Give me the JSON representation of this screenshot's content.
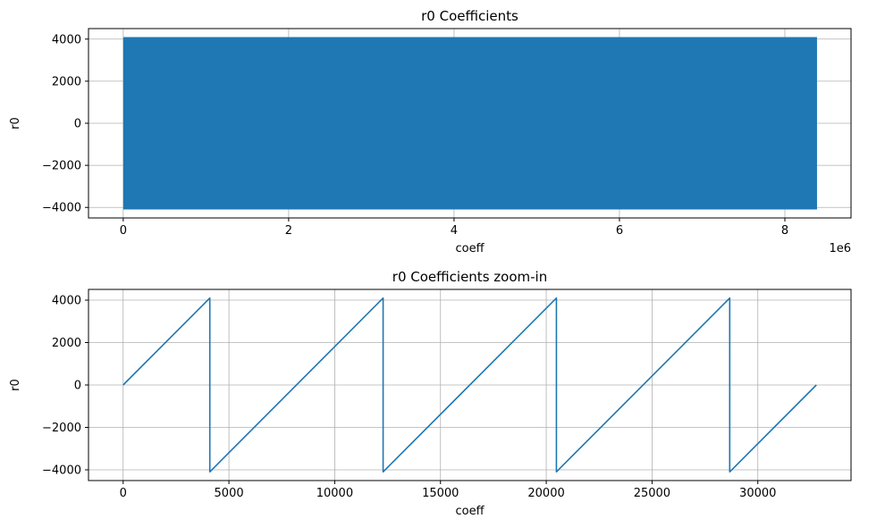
{
  "figure": {
    "background": "#ffffff",
    "line_color": "#1f77b4",
    "grid_color": "#b0b0b0"
  },
  "chart_data": [
    {
      "type": "line",
      "title": "r0 Coefficients",
      "xlabel": "coeff",
      "ylabel": "r0",
      "x_offset_label": "1e6",
      "xlim": [
        -0.42,
        8.8
      ],
      "ylim": [
        -4500,
        4500
      ],
      "x_ticks": [
        0,
        2,
        4,
        6,
        8
      ],
      "x_tick_labels": [
        "0",
        "2",
        "4",
        "6",
        "8"
      ],
      "y_ticks": [
        -4000,
        -2000,
        0,
        2000,
        4000
      ],
      "y_tick_labels": [
        "−4000",
        "−2000",
        "0",
        "2000",
        "4000"
      ],
      "grid": true,
      "series": [
        {
          "style": "dense sawtooth rendered as filled band",
          "x_range": [
            0,
            8.388608
          ],
          "y_range": [
            -4096,
            4096
          ]
        }
      ]
    },
    {
      "type": "line",
      "title": "r0 Coefficients zoom-in",
      "xlabel": "coeff",
      "ylabel": "r0",
      "xlim": [
        -1638,
        34406
      ],
      "ylim": [
        -4506,
        4506
      ],
      "x_ticks": [
        0,
        5000,
        10000,
        15000,
        20000,
        25000,
        30000
      ],
      "x_tick_labels": [
        "0",
        "5000",
        "10000",
        "15000",
        "20000",
        "25000",
        "30000"
      ],
      "y_ticks": [
        -4000,
        -2000,
        0,
        2000,
        4000
      ],
      "y_tick_labels": [
        "−4000",
        "−2000",
        "0",
        "2000",
        "4000"
      ],
      "grid": true,
      "series": [
        {
          "x": [
            0,
            4096,
            4096,
            12288,
            12288,
            20480,
            20480,
            28672,
            28672,
            32768
          ],
          "y": [
            0,
            4096,
            -4096,
            4096,
            -4096,
            4096,
            -4096,
            4096,
            -4096,
            0
          ]
        }
      ]
    }
  ]
}
